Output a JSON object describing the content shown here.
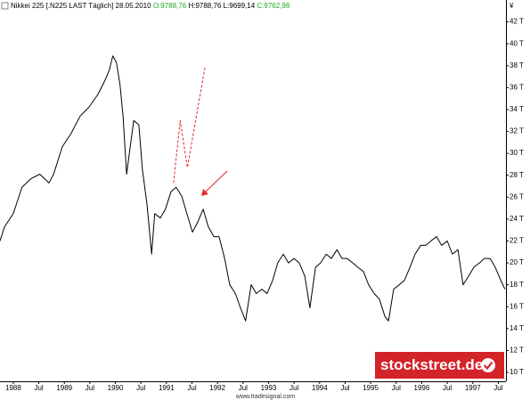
{
  "header": {
    "instrument": "Nikkei 225 [.N225 LAST Täglich] 28.05.2010",
    "open": "O:9788,76",
    "high_low": "H:9788,76 L:9699,14",
    "close": "C:9762,98"
  },
  "watermark": "www.tradesignal.com",
  "logo": "stockstreet.de",
  "chart_data": {
    "type": "line",
    "y_unit": "¥",
    "xlim": [
      1987.74,
      1997.65
    ],
    "ylim": [
      9.19,
      44.0
    ],
    "xticks": [
      {
        "value": 1988,
        "label": "1988"
      },
      {
        "value": 1988.5,
        "label": "Jul"
      },
      {
        "value": 1989,
        "label": "1989"
      },
      {
        "value": 1989.5,
        "label": "Jul"
      },
      {
        "value": 1990,
        "label": "1990"
      },
      {
        "value": 1990.5,
        "label": "Jul"
      },
      {
        "value": 1991,
        "label": "1991"
      },
      {
        "value": 1991.5,
        "label": "Jul"
      },
      {
        "value": 1992,
        "label": "1992"
      },
      {
        "value": 1992.5,
        "label": "Jul"
      },
      {
        "value": 1993,
        "label": "1993"
      },
      {
        "value": 1993.5,
        "label": "Jul"
      },
      {
        "value": 1994,
        "label": "1994"
      },
      {
        "value": 1994.5,
        "label": "Jul"
      },
      {
        "value": 1995,
        "label": "1995"
      },
      {
        "value": 1995.5,
        "label": "Jul"
      },
      {
        "value": 1996,
        "label": "1996"
      },
      {
        "value": 1996.5,
        "label": "Jul"
      },
      {
        "value": 1997,
        "label": "1997"
      },
      {
        "value": 1997.5,
        "label": "Jul"
      }
    ],
    "yticks": [
      {
        "value": 10,
        "label": "10 T"
      },
      {
        "value": 12,
        "label": "12 T"
      },
      {
        "value": 14,
        "label": "14 T"
      },
      {
        "value": 16,
        "label": "16 T"
      },
      {
        "value": 18,
        "label": "18 T"
      },
      {
        "value": 20,
        "label": "20 T"
      },
      {
        "value": 22,
        "label": "22 T"
      },
      {
        "value": 24,
        "label": "24 T"
      },
      {
        "value": 26,
        "label": "26 T"
      },
      {
        "value": 28,
        "label": "28 T"
      },
      {
        "value": 30,
        "label": "30 T"
      },
      {
        "value": 32,
        "label": "32 T"
      },
      {
        "value": 34,
        "label": "34 T"
      },
      {
        "value": 36,
        "label": "36 T"
      },
      {
        "value": 38,
        "label": "38 T"
      },
      {
        "value": 40,
        "label": "40 T"
      },
      {
        "value": 42,
        "label": "42 T"
      }
    ],
    "grid": false,
    "series": [
      {
        "color": "#000000",
        "dashed": false,
        "x": [
          1987.74,
          1987.83,
          1988.0,
          1988.17,
          1988.35,
          1988.52,
          1988.7,
          1988.79,
          1988.96,
          1989.13,
          1989.31,
          1989.48,
          1989.66,
          1989.8,
          1989.88,
          1989.95,
          1990.02,
          1990.09,
          1990.15,
          1990.22,
          1990.29,
          1990.36,
          1990.46,
          1990.53,
          1990.62,
          1990.71,
          1990.77,
          1990.88,
          1990.98,
          1991.09,
          1991.19,
          1991.3,
          1991.4,
          1991.51,
          1991.61,
          1991.72,
          1991.82,
          1991.93,
          1992.03,
          1992.14,
          1992.24,
          1992.35,
          1992.45,
          1992.55,
          1992.66,
          1992.76,
          1992.87,
          1992.97,
          1993.08,
          1993.18,
          1993.29,
          1993.39,
          1993.5,
          1993.6,
          1993.71,
          1993.81,
          1993.92,
          1994.02,
          1994.13,
          1994.23,
          1994.34,
          1994.44,
          1994.54,
          1994.65,
          1994.75,
          1994.86,
          1994.96,
          1995.07,
          1995.17,
          1995.28,
          1995.35,
          1995.45,
          1995.56,
          1995.66,
          1995.77,
          1995.87,
          1995.98,
          1996.08,
          1996.18,
          1996.29,
          1996.39,
          1996.5,
          1996.6,
          1996.71,
          1996.81,
          1996.92,
          1997.02,
          1997.13,
          1997.23,
          1997.34,
          1997.44,
          1997.55,
          1997.63
        ],
        "values": [
          22.0,
          23.3,
          24.5,
          26.9,
          27.7,
          28.1,
          27.3,
          28.1,
          30.6,
          31.8,
          33.4,
          34.2,
          35.4,
          36.7,
          37.6,
          38.9,
          38.3,
          36.3,
          33.4,
          28.1,
          30.6,
          33.0,
          32.6,
          28.5,
          25.3,
          20.8,
          24.5,
          24.1,
          24.9,
          26.5,
          26.9,
          26.1,
          24.5,
          22.8,
          23.7,
          24.9,
          23.3,
          22.4,
          22.4,
          20.4,
          18.0,
          17.2,
          15.9,
          14.7,
          18.0,
          17.2,
          17.6,
          17.2,
          18.4,
          20.0,
          20.8,
          20.0,
          20.4,
          20.0,
          18.8,
          15.9,
          19.6,
          20.0,
          20.8,
          20.4,
          21.2,
          20.4,
          20.4,
          20.0,
          19.6,
          19.2,
          18.0,
          17.2,
          16.7,
          15.1,
          14.7,
          17.6,
          18.0,
          18.4,
          19.6,
          20.8,
          21.6,
          21.6,
          22.0,
          22.4,
          21.6,
          22.0,
          20.8,
          21.2,
          18.0,
          18.8,
          19.6,
          20.0,
          20.4,
          20.4,
          19.6,
          18.4,
          17.6
        ]
      },
      {
        "color": "#e8262a",
        "dashed": true,
        "x": [
          1991.14,
          1991.27,
          1991.41,
          1991.76
        ],
        "values": [
          27.3,
          33.0,
          28.7,
          38.0
        ]
      }
    ]
  }
}
